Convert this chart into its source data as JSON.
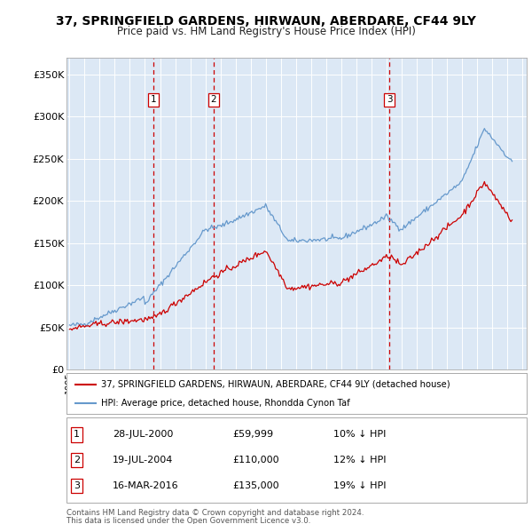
{
  "title": "37, SPRINGFIELD GARDENS, HIRWAUN, ABERDARE, CF44 9LY",
  "subtitle": "Price paid vs. HM Land Registry's House Price Index (HPI)",
  "legend_line1": "37, SPRINGFIELD GARDENS, HIRWAUN, ABERDARE, CF44 9LY (detached house)",
  "legend_line2": "HPI: Average price, detached house, Rhondda Cynon Taf",
  "footer1": "Contains HM Land Registry data © Crown copyright and database right 2024.",
  "footer2": "This data is licensed under the Open Government Licence v3.0.",
  "transactions": [
    {
      "num": 1,
      "date": "28-JUL-2000",
      "price": "£59,999",
      "hpi_note": "10% ↓ HPI",
      "year": 2000.55,
      "price_val": 59999
    },
    {
      "num": 2,
      "date": "19-JUL-2004",
      "price": "£110,000",
      "hpi_note": "12% ↓ HPI",
      "year": 2004.54,
      "price_val": 110000
    },
    {
      "num": 3,
      "date": "16-MAR-2016",
      "price": "£135,000",
      "hpi_note": "19% ↓ HPI",
      "year": 2016.21,
      "price_val": 135000
    }
  ],
  "hpi_color": "#6699cc",
  "price_color": "#cc0000",
  "vline_color": "#cc0000",
  "background_plot": "#dce8f5",
  "background_fig": "#ffffff",
  "ylim": [
    0,
    370000
  ],
  "xlim_start": 1994.8,
  "xlim_end": 2025.3,
  "yticks": [
    0,
    50000,
    100000,
    150000,
    200000,
    250000,
    300000,
    350000
  ],
  "ylabels": [
    "£0",
    "£50K",
    "£100K",
    "£150K",
    "£200K",
    "£250K",
    "£300K",
    "£350K"
  ]
}
